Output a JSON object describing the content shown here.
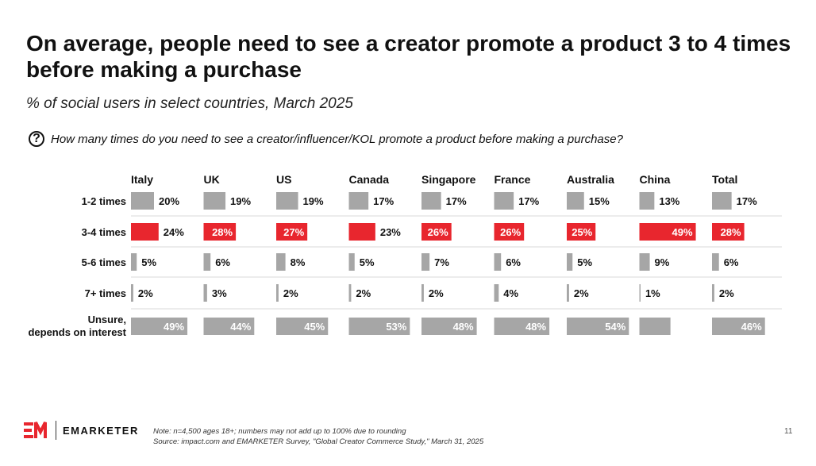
{
  "title": "On average, people need to see a creator promote a product 3 to 4 times before making a purchase",
  "subtitle": "% of social users in select countries, March 2025",
  "question": "How many times do you need to see a creator/influencer/KOL promote a product before making a purchase?",
  "question_icon": "question-circle-icon",
  "colors": {
    "gray": "#a6a6a6",
    "highlight": "#e8262e",
    "divider": "#d9d9d9"
  },
  "chart_data": {
    "type": "bar",
    "title": "On average, people need to see a creator promote a product 3 to 4 times before making a purchase",
    "subtitle": "% of social users in select countries, March 2025",
    "categories": [
      "1-2 times",
      "3-4 times",
      "5-6 times",
      "7+ times",
      "Unsure, depends on interest"
    ],
    "highlighted_category": "3-4 times",
    "series": [
      {
        "name": "Italy",
        "values": [
          20,
          24,
          5,
          2,
          49
        ]
      },
      {
        "name": "UK",
        "values": [
          19,
          28,
          6,
          3,
          44
        ]
      },
      {
        "name": "US",
        "values": [
          19,
          27,
          8,
          2,
          45
        ]
      },
      {
        "name": "Canada",
        "values": [
          17,
          23,
          5,
          2,
          53
        ]
      },
      {
        "name": "Singapore",
        "values": [
          17,
          26,
          7,
          2,
          48
        ]
      },
      {
        "name": "France",
        "values": [
          17,
          26,
          6,
          4,
          48
        ]
      },
      {
        "name": "Australia",
        "values": [
          15,
          25,
          5,
          2,
          54
        ]
      },
      {
        "name": "China",
        "values": [
          13,
          49,
          9,
          1,
          27
        ]
      },
      {
        "name": "Total",
        "values": [
          17,
          28,
          6,
          2,
          46
        ]
      }
    ]
  },
  "footer": {
    "note": "Note: n=4,500 ages 18+; numbers may not add up to 100% due to rounding",
    "source": "Source: impact.com and EMARKETER Survey, \"Global Creator Commerce Study,\" March 31, 2025",
    "page_number": "11",
    "brand": "EMARKETER",
    "logo_icon": "em-logo-icon"
  }
}
